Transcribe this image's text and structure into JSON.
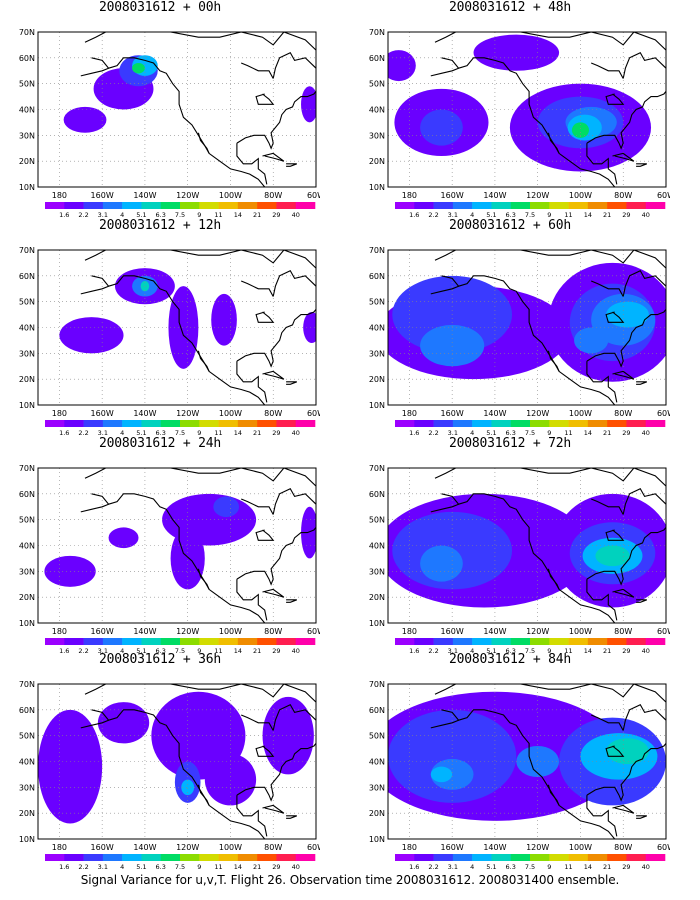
{
  "panels": [
    {
      "title": "2008031612 + 00h",
      "blobs": [
        {
          "lon": -150,
          "lat": 48,
          "rx": 14,
          "ry": 8,
          "level": 1
        },
        {
          "lon": -143,
          "lat": 55,
          "rx": 9,
          "ry": 6,
          "level": 2
        },
        {
          "lon": -140,
          "lat": 57,
          "rx": 6,
          "ry": 4,
          "level": 4
        },
        {
          "lon": -143,
          "lat": 56,
          "rx": 3,
          "ry": 2,
          "level": 6
        },
        {
          "lon": -168,
          "lat": 36,
          "rx": 10,
          "ry": 5,
          "level": 1
        },
        {
          "lon": -63,
          "lat": 42,
          "rx": 4,
          "ry": 7,
          "level": 1
        }
      ]
    },
    {
      "title": "2008031612 + 48h",
      "blobs": [
        {
          "lon": -165,
          "lat": 35,
          "rx": 22,
          "ry": 13,
          "level": 1
        },
        {
          "lon": -100,
          "lat": 33,
          "rx": 33,
          "ry": 17,
          "level": 1
        },
        {
          "lon": -165,
          "lat": 33,
          "rx": 10,
          "ry": 7,
          "level": 2
        },
        {
          "lon": -100,
          "lat": 35,
          "rx": 20,
          "ry": 10,
          "level": 2
        },
        {
          "lon": -95,
          "lat": 35,
          "rx": 12,
          "ry": 6,
          "level": 3
        },
        {
          "lon": -98,
          "lat": 33,
          "rx": 8,
          "ry": 5,
          "level": 4
        },
        {
          "lon": -100,
          "lat": 32,
          "rx": 4,
          "ry": 3,
          "level": 6
        },
        {
          "lon": -130,
          "lat": 62,
          "rx": 20,
          "ry": 7,
          "level": 1
        },
        {
          "lon": -185,
          "lat": 57,
          "rx": 8,
          "ry": 6,
          "level": 1
        }
      ]
    },
    {
      "title": "2008031612 + 12h",
      "blobs": [
        {
          "lon": -140,
          "lat": 56,
          "rx": 14,
          "ry": 7,
          "level": 1
        },
        {
          "lon": -140,
          "lat": 56,
          "rx": 6,
          "ry": 4,
          "level": 3
        },
        {
          "lon": -140,
          "lat": 56,
          "rx": 2,
          "ry": 2,
          "level": 5
        },
        {
          "lon": -165,
          "lat": 37,
          "rx": 15,
          "ry": 7,
          "level": 1
        },
        {
          "lon": -122,
          "lat": 40,
          "rx": 7,
          "ry": 16,
          "level": 1
        },
        {
          "lon": -103,
          "lat": 43,
          "rx": 6,
          "ry": 10,
          "level": 1
        },
        {
          "lon": -62,
          "lat": 40,
          "rx": 4,
          "ry": 6,
          "level": 1
        }
      ]
    },
    {
      "title": "2008031612 + 60h",
      "blobs": [
        {
          "lon": -150,
          "lat": 38,
          "rx": 45,
          "ry": 18,
          "level": 1
        },
        {
          "lon": -85,
          "lat": 42,
          "rx": 30,
          "ry": 23,
          "level": 1
        },
        {
          "lon": -160,
          "lat": 45,
          "rx": 28,
          "ry": 15,
          "level": 2
        },
        {
          "lon": -160,
          "lat": 33,
          "rx": 15,
          "ry": 8,
          "level": 3
        },
        {
          "lon": -85,
          "lat": 42,
          "rx": 20,
          "ry": 15,
          "level": 2
        },
        {
          "lon": -80,
          "lat": 43,
          "rx": 15,
          "ry": 10,
          "level": 3
        },
        {
          "lon": -78,
          "lat": 45,
          "rx": 10,
          "ry": 5,
          "level": 4
        },
        {
          "lon": -95,
          "lat": 35,
          "rx": 8,
          "ry": 5,
          "level": 3
        }
      ]
    },
    {
      "title": "2008031612 + 24h",
      "blobs": [
        {
          "lon": -110,
          "lat": 50,
          "rx": 22,
          "ry": 10,
          "level": 1
        },
        {
          "lon": -102,
          "lat": 55,
          "rx": 6,
          "ry": 4,
          "level": 2
        },
        {
          "lon": -120,
          "lat": 35,
          "rx": 8,
          "ry": 12,
          "level": 1
        },
        {
          "lon": -175,
          "lat": 30,
          "rx": 12,
          "ry": 6,
          "level": 1
        },
        {
          "lon": -63,
          "lat": 45,
          "rx": 4,
          "ry": 10,
          "level": 1
        },
        {
          "lon": -150,
          "lat": 43,
          "rx": 7,
          "ry": 4,
          "level": 1
        }
      ]
    },
    {
      "title": "2008031612 + 72h",
      "blobs": [
        {
          "lon": -145,
          "lat": 38,
          "rx": 50,
          "ry": 22,
          "level": 1
        },
        {
          "lon": -85,
          "lat": 38,
          "rx": 28,
          "ry": 22,
          "level": 1
        },
        {
          "lon": -160,
          "lat": 38,
          "rx": 28,
          "ry": 15,
          "level": 2
        },
        {
          "lon": -165,
          "lat": 33,
          "rx": 10,
          "ry": 7,
          "level": 3
        },
        {
          "lon": -85,
          "lat": 37,
          "rx": 20,
          "ry": 12,
          "level": 2
        },
        {
          "lon": -85,
          "lat": 36,
          "rx": 14,
          "ry": 7,
          "level": 4
        },
        {
          "lon": -85,
          "lat": 36,
          "rx": 8,
          "ry": 4,
          "level": 5
        }
      ]
    },
    {
      "title": "2008031612 + 36h",
      "blobs": [
        {
          "lon": -175,
          "lat": 38,
          "rx": 15,
          "ry": 22,
          "level": 1
        },
        {
          "lon": -115,
          "lat": 50,
          "rx": 22,
          "ry": 17,
          "level": 1
        },
        {
          "lon": -100,
          "lat": 33,
          "rx": 12,
          "ry": 10,
          "level": 1
        },
        {
          "lon": -120,
          "lat": 32,
          "rx": 6,
          "ry": 8,
          "level": 2
        },
        {
          "lon": -120,
          "lat": 30,
          "rx": 3,
          "ry": 3,
          "level": 4
        },
        {
          "lon": -73,
          "lat": 50,
          "rx": 12,
          "ry": 15,
          "level": 1
        },
        {
          "lon": -150,
          "lat": 55,
          "rx": 12,
          "ry": 8,
          "level": 1
        }
      ]
    },
    {
      "title": "2008031612 + 84h",
      "blobs": [
        {
          "lon": -140,
          "lat": 42,
          "rx": 60,
          "ry": 25,
          "level": 1
        },
        {
          "lon": -160,
          "lat": 42,
          "rx": 30,
          "ry": 18,
          "level": 2
        },
        {
          "lon": -160,
          "lat": 35,
          "rx": 10,
          "ry": 6,
          "level": 3
        },
        {
          "lon": -165,
          "lat": 35,
          "rx": 5,
          "ry": 3,
          "level": 4
        },
        {
          "lon": -85,
          "lat": 40,
          "rx": 25,
          "ry": 17,
          "level": 2
        },
        {
          "lon": -82,
          "lat": 42,
          "rx": 18,
          "ry": 9,
          "level": 4
        },
        {
          "lon": -78,
          "lat": 44,
          "rx": 10,
          "ry": 5,
          "level": 5
        },
        {
          "lon": -120,
          "lat": 40,
          "rx": 10,
          "ry": 6,
          "level": 3
        }
      ]
    }
  ],
  "lat_labels": [
    "70N",
    "60N",
    "50N",
    "40N",
    "30N",
    "20N",
    "10N"
  ],
  "lon_labels": [
    "180",
    "160W",
    "140W",
    "120W",
    "100W",
    "80W",
    "60W"
  ],
  "colorbar": {
    "labels": [
      "1.6",
      "2.2",
      "3.1",
      "4",
      "5.1",
      "6.3",
      "7.5",
      "9",
      "11",
      "14",
      "21",
      "29",
      "40"
    ],
    "colors": [
      "#9b00ff",
      "#6a00ff",
      "#3a3aff",
      "#1e78ff",
      "#00b4ff",
      "#00d2be",
      "#00dc64",
      "#8cdc00",
      "#d2dc00",
      "#f0be00",
      "#f08c00",
      "#ff5000",
      "#ff1e50",
      "#ff00aa"
    ]
  },
  "caption": "Signal Variance for u,v,T. Flight 26. Observation time 2008031612. 2008031400 ensemble."
}
